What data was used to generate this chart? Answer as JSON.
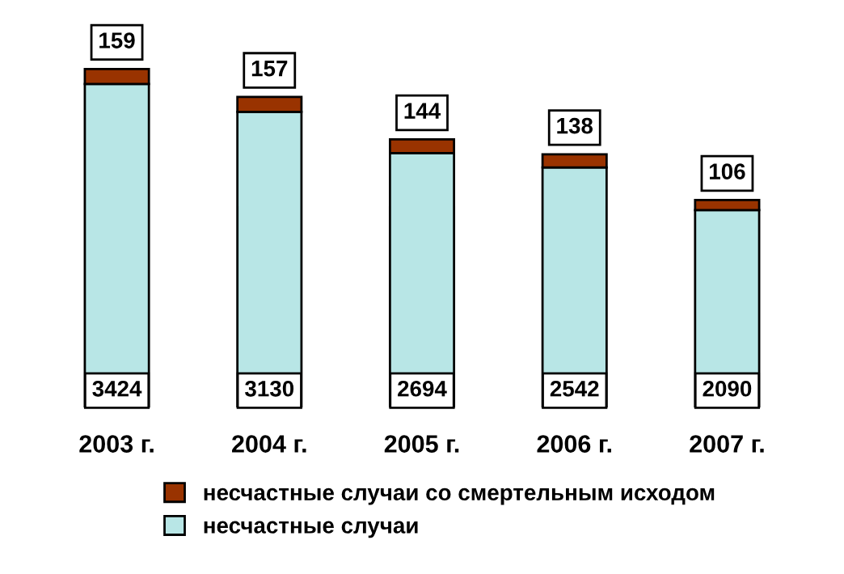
{
  "chart_data": {
    "type": "bar",
    "stacked": true,
    "data_labels": true,
    "legend": "bottom",
    "grid": false,
    "categories": [
      "2003 г.",
      "2004 г.",
      "2005 г.",
      "2006 г.",
      "2007 г."
    ],
    "series": [
      {
        "name": "несчастные случаи",
        "color": "#b8e6e6",
        "values": [
          3424,
          3130,
          2694,
          2542,
          2090
        ]
      },
      {
        "name": "несчастные случаи со смертельным исходом",
        "color": "#993300",
        "values": [
          159,
          157,
          144,
          138,
          106
        ]
      }
    ]
  }
}
